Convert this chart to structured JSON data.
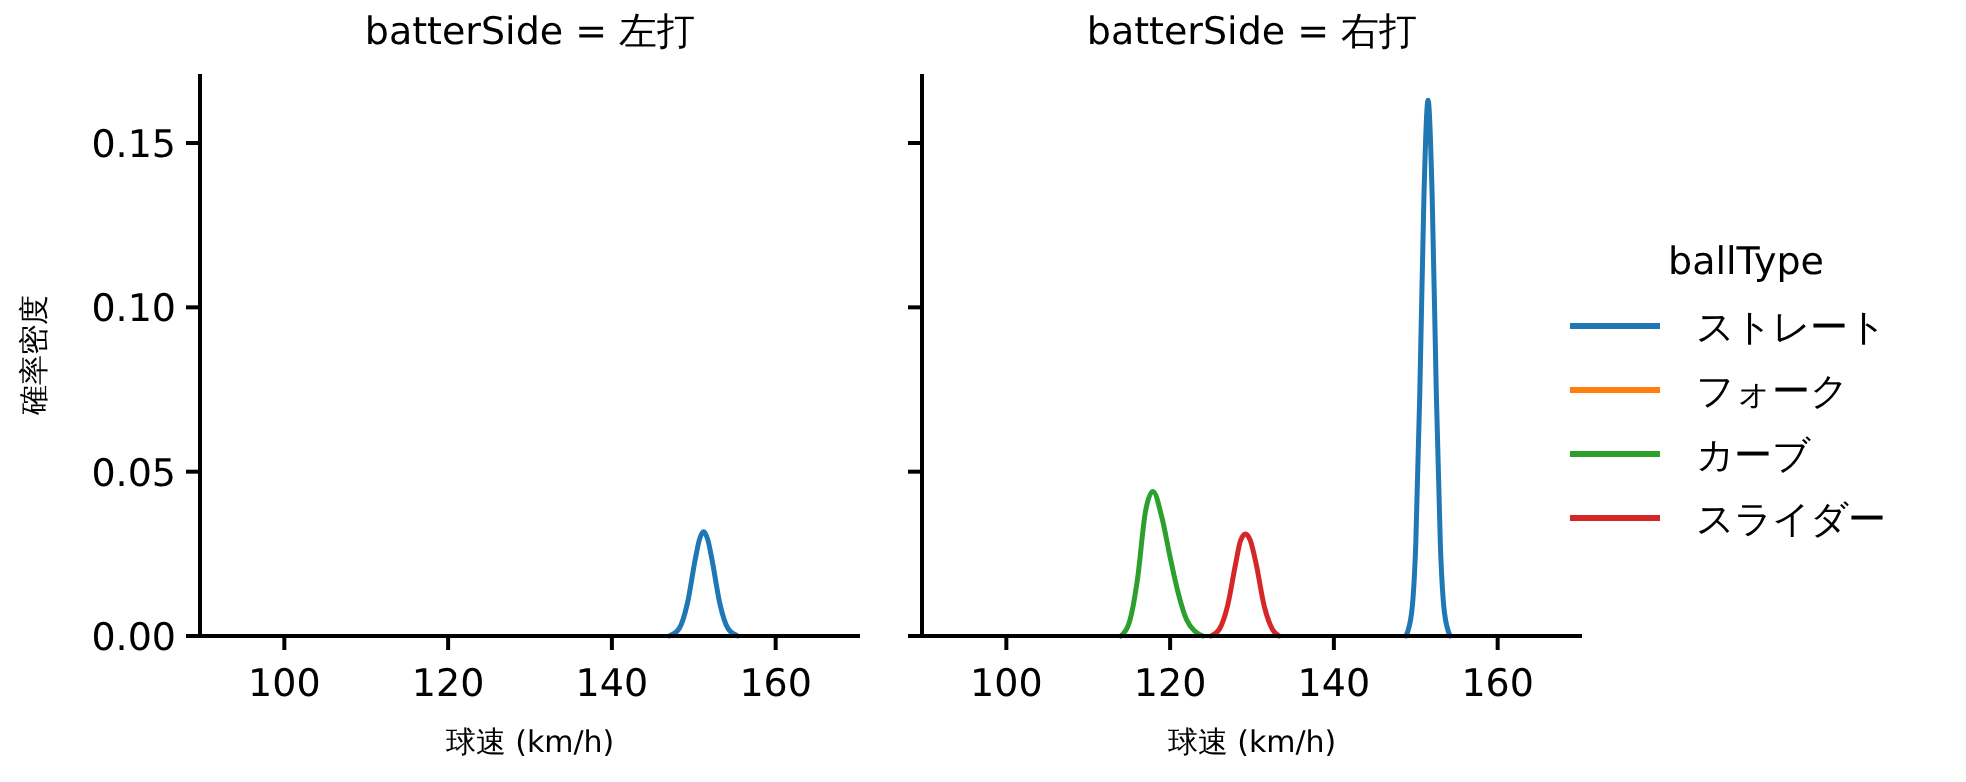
{
  "chart_data": [
    {
      "type": "line",
      "title": "batterSide = 左打",
      "xlabel": "球速 (km/h)",
      "ylabel": "確率密度",
      "xlim": [
        89.7,
        170.3
      ],
      "xticks": [
        100,
        120,
        140,
        160
      ],
      "ylim": [
        0,
        0.171
      ],
      "yticks": [
        {
          "value": 0,
          "label": "0.00"
        },
        {
          "value": 0.05,
          "label": "0.05"
        },
        {
          "value": 0.1,
          "label": "0.10"
        },
        {
          "value": 0.15,
          "label": "0.15"
        }
      ],
      "legend": false,
      "series": [
        {
          "color": "#1f77b4",
          "x": [
            147,
            148.2,
            149.2,
            150.2,
            150.7,
            151.2,
            151.7,
            152.2,
            153.2,
            154.2,
            155.4
          ],
          "values": [
            0,
            0.0022,
            0.0097,
            0.0236,
            0.0294,
            0.0317,
            0.0294,
            0.0236,
            0.0097,
            0.0022,
            0
          ]
        }
      ]
    },
    {
      "type": "line",
      "title": "batterSide = 右打",
      "xlabel": "球速 (km/h)",
      "xlim": [
        89.7,
        170.3
      ],
      "xticks": [
        100,
        120,
        140,
        160
      ],
      "ylim": [
        0,
        0.171
      ],
      "yticks": [
        {
          "value": 0,
          "label": null
        },
        {
          "value": 0.05,
          "label": null
        },
        {
          "value": 0.1,
          "label": null
        },
        {
          "value": 0.15,
          "label": null
        }
      ],
      "tick_labels": "x",
      "legend": "right",
      "legend_title": "ballType",
      "series": [
        {
          "name": "ストレート",
          "color": "#1f77b4",
          "x": [
            148.8,
            149.5,
            150,
            150.5,
            151,
            151.5,
            152,
            152.5,
            153,
            153.5,
            154.2
          ],
          "values": [
            0,
            0.0072,
            0.028,
            0.075,
            0.134,
            0.163,
            0.134,
            0.075,
            0.028,
            0.0072,
            0
          ]
        },
        {
          "name": "フォーク",
          "color": "#ff7f0e"
        },
        {
          "name": "カーブ",
          "color": "#2ca02c",
          "x": [
            114,
            115,
            116,
            117,
            117.9,
            119,
            120,
            121,
            122,
            123,
            124
          ],
          "values": [
            0,
            0.004,
            0.017,
            0.038,
            0.044,
            0.036,
            0.024,
            0.013,
            0.005,
            0.0015,
            0
          ]
        },
        {
          "name": "スライダー",
          "color": "#d62728",
          "x": [
            125,
            126,
            127,
            128,
            128.6,
            129.2,
            129.8,
            130.5,
            131.5,
            132.5,
            133.3
          ],
          "values": [
            0,
            0.002,
            0.009,
            0.022,
            0.029,
            0.031,
            0.029,
            0.022,
            0.009,
            0.002,
            0
          ]
        }
      ]
    }
  ]
}
